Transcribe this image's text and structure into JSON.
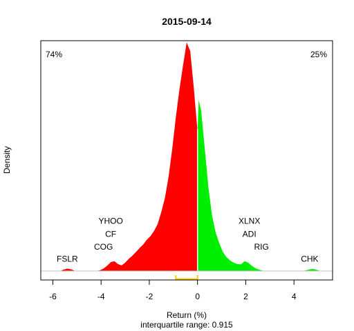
{
  "chart_data": {
    "type": "area",
    "title": "2015-09-14",
    "xlabel": "Return (%)",
    "ylabel": "Density",
    "subtitle": "interquartile range: 0.915",
    "xlim": [
      -6.5,
      5.6
    ],
    "ylim": [
      0,
      0.66
    ],
    "xticks": [
      -6,
      -4,
      -2,
      0,
      2,
      4
    ],
    "split_at": 0,
    "colors": {
      "negative": "#ff0000",
      "positive": "#00ee00",
      "iqr": "#ffcc00",
      "baseline": "#c0c0c0",
      "divider": "#ffffff"
    },
    "left_share": {
      "text": "74%",
      "color": "#ff0000"
    },
    "right_share": {
      "text": "25%",
      "color": "#008800"
    },
    "iqr": [
      -0.9,
      0.0
    ],
    "density": {
      "x": [
        -5.7,
        -5.55,
        -5.4,
        -5.25,
        -5.1,
        -4.95,
        -4.8,
        -4.65,
        -4.5,
        -4.35,
        -4.2,
        -4.05,
        -3.9,
        -3.75,
        -3.6,
        -3.45,
        -3.3,
        -3.15,
        -3.0,
        -2.85,
        -2.7,
        -2.55,
        -2.4,
        -2.25,
        -2.1,
        -1.95,
        -1.8,
        -1.65,
        -1.5,
        -1.35,
        -1.2,
        -1.05,
        -0.9,
        -0.75,
        -0.6,
        -0.45,
        -0.3,
        -0.15,
        0.0,
        0.05,
        0.15,
        0.3,
        0.45,
        0.6,
        0.75,
        0.9,
        1.05,
        1.2,
        1.35,
        1.5,
        1.65,
        1.8,
        1.95,
        2.1,
        2.25,
        2.4,
        2.55,
        2.7,
        2.85,
        3.0,
        3.15,
        3.3,
        3.45,
        3.6,
        3.75,
        3.9,
        4.05,
        4.2,
        4.35,
        4.5,
        4.65,
        4.8,
        4.95,
        5.1
      ],
      "y": [
        0.0,
        0.004,
        0.007,
        0.005,
        0.001,
        0.0,
        0.0,
        0.0,
        0.0,
        0.0,
        0.0,
        0.002,
        0.007,
        0.015,
        0.025,
        0.028,
        0.02,
        0.016,
        0.024,
        0.035,
        0.044,
        0.055,
        0.066,
        0.076,
        0.09,
        0.1,
        0.115,
        0.135,
        0.17,
        0.21,
        0.27,
        0.35,
        0.44,
        0.52,
        0.59,
        0.655,
        0.63,
        0.52,
        0.4,
        0.49,
        0.46,
        0.35,
        0.24,
        0.16,
        0.11,
        0.08,
        0.055,
        0.04,
        0.03,
        0.024,
        0.02,
        0.019,
        0.028,
        0.024,
        0.015,
        0.008,
        0.004,
        0.001,
        0.0,
        0.0,
        0.0,
        0.0,
        0.0,
        0.0,
        0.0,
        0.0,
        0.0,
        0.0,
        0.0,
        0.002,
        0.005,
        0.006,
        0.003,
        0.0
      ]
    },
    "annotations": [
      {
        "text": "YHOO",
        "x": -3.6,
        "y": 0.135
      },
      {
        "text": "CF",
        "x": -3.6,
        "y": 0.098
      },
      {
        "text": "COG",
        "x": -3.9,
        "y": 0.061
      },
      {
        "text": "FSLR",
        "x": -5.4,
        "y": 0.027
      },
      {
        "text": "XLNX",
        "x": 2.15,
        "y": 0.135
      },
      {
        "text": "ADI",
        "x": 2.15,
        "y": 0.098
      },
      {
        "text": "RIG",
        "x": 2.65,
        "y": 0.061
      },
      {
        "text": "CHK",
        "x": 4.65,
        "y": 0.027
      }
    ]
  }
}
